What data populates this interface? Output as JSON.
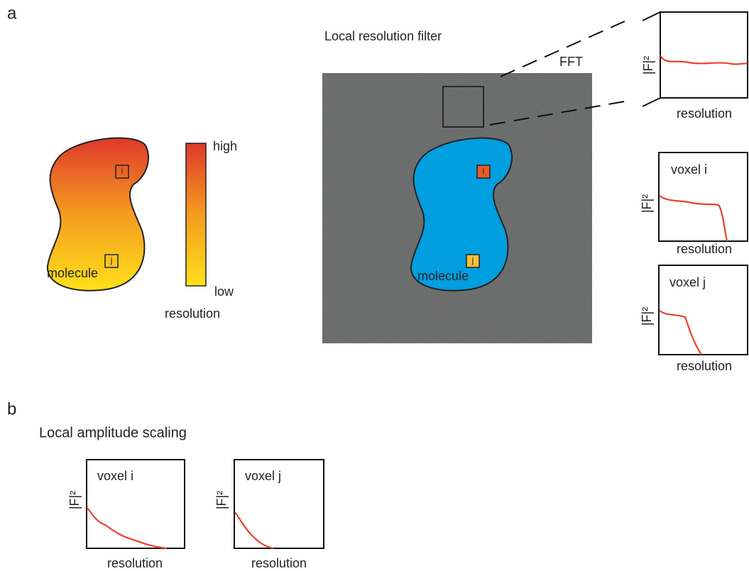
{
  "panel_a": {
    "label": "a",
    "molecule_map": {
      "label": "molecule",
      "voxels": [
        "i",
        "j"
      ]
    },
    "color_bar": {
      "high": "high",
      "low": "low",
      "title": "resolution"
    },
    "filter": {
      "title": "Local resolution filter",
      "fft": "FFT",
      "label": "molecule",
      "voxels": [
        "i",
        "j"
      ]
    },
    "plots": [
      {
        "ylabel": "|F|²",
        "xlabel": "resolution"
      },
      {
        "title": "voxel i",
        "ylabel": "|F|²",
        "xlabel": "resolution"
      },
      {
        "title": "voxel j",
        "ylabel": "|F|²",
        "xlabel": "resolution"
      }
    ]
  },
  "panel_b": {
    "label": "b",
    "title": "Local amplitude scaling",
    "plots": [
      {
        "title": "voxel i",
        "ylabel": "|F|²",
        "xlabel": "resolution"
      },
      {
        "title": "voxel j",
        "ylabel": "|F|²",
        "xlabel": "resolution"
      }
    ]
  }
}
